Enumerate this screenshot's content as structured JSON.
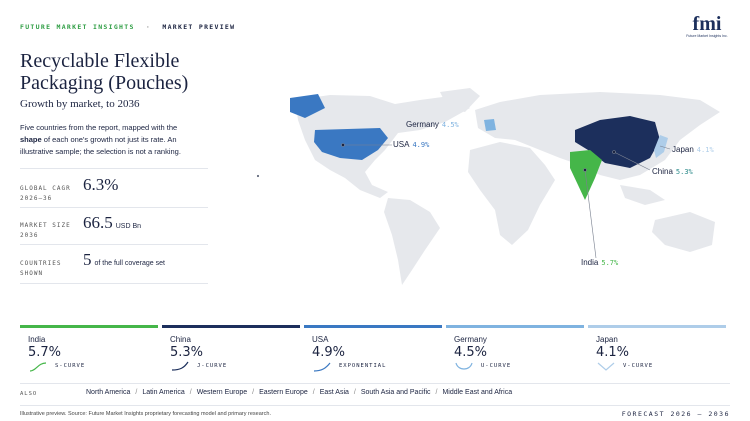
{
  "header": {
    "brand": "FUTURE MARKET INSIGHTS",
    "separator": "·",
    "section": "MARKET PREVIEW"
  },
  "logo": {
    "text": "fmi",
    "subtext": "Future Market Insights Inc."
  },
  "title": "Recyclable Flexible Packaging (Pouches)",
  "subtitle": "Growth by market, to 2036",
  "description": {
    "before": "Five countries from the report, mapped with the ",
    "bold": "shape",
    "after": " of each one's growth not just its rate. An illustrative sample; the selection is not a ranking."
  },
  "stats": [
    {
      "label": "GLOBAL CAGR 2026–36",
      "value": "6.3%"
    },
    {
      "label": "MARKET SIZE 2036",
      "value": "66.5",
      "unit": "USD Bn"
    },
    {
      "label": "COUNTRIES SHOWN",
      "value": "5",
      "unit": "of the full coverage set"
    }
  ],
  "markets": [
    {
      "name": "India",
      "cagr": "5.7%",
      "curve": "S-CURVE",
      "color": "#45b649"
    },
    {
      "name": "China",
      "cagr": "5.3%",
      "curve": "J-CURVE",
      "color": "#1c2f5c"
    },
    {
      "name": "USA",
      "cagr": "4.9%",
      "curve": "EXPONENTIAL",
      "color": "#3a78c2"
    },
    {
      "name": "Germany",
      "cagr": "4.5%",
      "curve": "U-CURVE",
      "color": "#7fb3e0"
    },
    {
      "name": "Japan",
      "cagr": "4.1%",
      "curve": "V-CURVE",
      "color": "#aecde9"
    }
  ],
  "also": {
    "label": "ALSO",
    "regions": [
      "North America",
      "Latin America",
      "Western Europe",
      "Eastern Europe",
      "East Asia",
      "South Asia and Pacific",
      "Middle East and Africa"
    ],
    "separator": "/"
  },
  "footer": {
    "note": "Illustrative preview. Source: Future Market Insights proprietary forecasting model and primary research.",
    "forecast": "FORECAST 2026 – 2036"
  }
}
